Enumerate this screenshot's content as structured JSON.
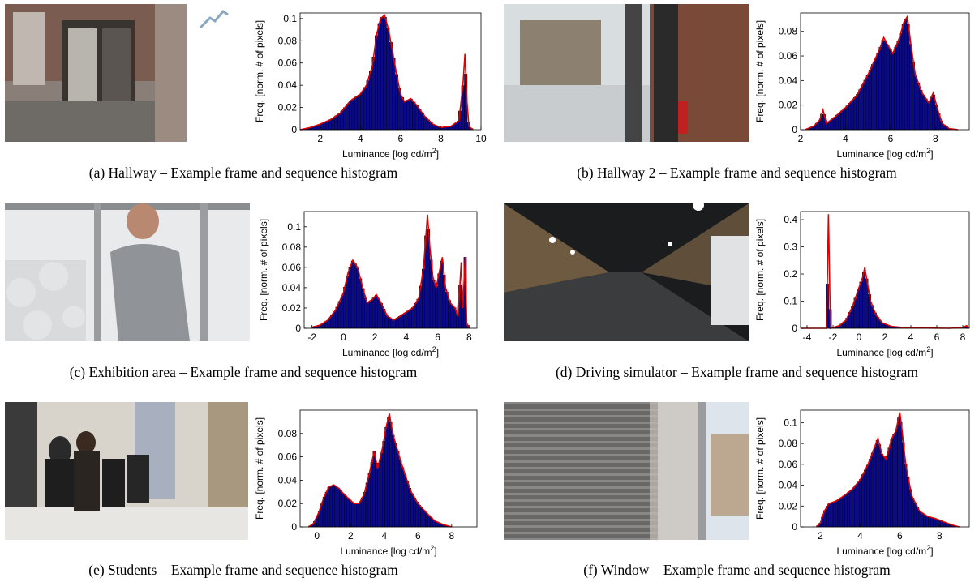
{
  "figure": {
    "panels": [
      {
        "id": "a",
        "caption": "(a)  Hallway – Example frame and sequence histogram",
        "photo_icon": "hallway-photo",
        "chart_data": {
          "type": "bar",
          "xlabel": "Luminance [log cd/m2]",
          "ylabel": "Freq. [norm. # of pixels]",
          "xlim": [
            1,
            10
          ],
          "ylim": [
            0,
            0.105
          ],
          "xticks": [
            2,
            4,
            6,
            8,
            10
          ],
          "yticks": [
            0,
            0.02,
            0.04,
            0.06,
            0.08,
            0.1
          ],
          "curve": [
            [
              1,
              0
            ],
            [
              1.5,
              0.002
            ],
            [
              2,
              0.005
            ],
            [
              2.5,
              0.009
            ],
            [
              3,
              0.015
            ],
            [
              3.5,
              0.026
            ],
            [
              4,
              0.032
            ],
            [
              4.3,
              0.04
            ],
            [
              4.6,
              0.058
            ],
            [
              4.8,
              0.085
            ],
            [
              5,
              0.1
            ],
            [
              5.2,
              0.103
            ],
            [
              5.4,
              0.09
            ],
            [
              5.6,
              0.07
            ],
            [
              5.8,
              0.05
            ],
            [
              6,
              0.032
            ],
            [
              6.2,
              0.025
            ],
            [
              6.5,
              0.028
            ],
            [
              6.8,
              0.022
            ],
            [
              7.2,
              0.012
            ],
            [
              7.6,
              0.005
            ],
            [
              8,
              0.002
            ],
            [
              8.5,
              0.003
            ],
            [
              8.9,
              0.008
            ],
            [
              9.1,
              0.04
            ],
            [
              9.2,
              0.068
            ],
            [
              9.3,
              0.025
            ],
            [
              9.4,
              0.003
            ],
            [
              9.6,
              0
            ]
          ]
        }
      },
      {
        "id": "b",
        "caption": "(b)  Hallway 2 – Example frame and sequence histogram",
        "photo_icon": "hallway-2-photo",
        "chart_data": {
          "type": "bar",
          "xlabel": "Luminance [log cd/m2]",
          "ylabel": "Freq. [norm. # of pixels]",
          "xlim": [
            2,
            9.5
          ],
          "ylim": [
            0,
            0.095
          ],
          "xticks": [
            2,
            4,
            6,
            8
          ],
          "yticks": [
            0,
            0.02,
            0.04,
            0.06,
            0.08
          ],
          "curve": [
            [
              2.2,
              0
            ],
            [
              2.6,
              0.003
            ],
            [
              2.85,
              0.008
            ],
            [
              3,
              0.016
            ],
            [
              3.15,
              0.005
            ],
            [
              3.5,
              0.01
            ],
            [
              4,
              0.018
            ],
            [
              4.5,
              0.028
            ],
            [
              5,
              0.045
            ],
            [
              5.5,
              0.065
            ],
            [
              5.7,
              0.075
            ],
            [
              5.9,
              0.068
            ],
            [
              6.1,
              0.062
            ],
            [
              6.4,
              0.075
            ],
            [
              6.6,
              0.088
            ],
            [
              6.75,
              0.092
            ],
            [
              6.9,
              0.07
            ],
            [
              7.1,
              0.045
            ],
            [
              7.4,
              0.03
            ],
            [
              7.7,
              0.022
            ],
            [
              7.9,
              0.03
            ],
            [
              8.1,
              0.016
            ],
            [
              8.3,
              0.005
            ],
            [
              8.6,
              0.001
            ],
            [
              9,
              0
            ]
          ]
        }
      },
      {
        "id": "c",
        "caption": "(c)  Exhibition area – Example frame and sequence histogram",
        "photo_icon": "exhibition-area-photo",
        "chart_data": {
          "type": "bar",
          "xlabel": "Luminance [log cd/m2]",
          "ylabel": "Freq. [norm. # of pixels]",
          "xlim": [
            -2.5,
            8.5
          ],
          "ylim": [
            0,
            0.115
          ],
          "xticks": [
            -2,
            0,
            2,
            4,
            6,
            8
          ],
          "yticks": [
            0,
            0.02,
            0.04,
            0.06,
            0.08,
            0.1
          ],
          "curve": [
            [
              -2,
              0.001
            ],
            [
              -1.5,
              0.003
            ],
            [
              -1,
              0.008
            ],
            [
              -0.5,
              0.018
            ],
            [
              0,
              0.035
            ],
            [
              0.3,
              0.055
            ],
            [
              0.6,
              0.067
            ],
            [
              0.9,
              0.06
            ],
            [
              1.2,
              0.042
            ],
            [
              1.5,
              0.025
            ],
            [
              1.8,
              0.028
            ],
            [
              2.1,
              0.033
            ],
            [
              2.4,
              0.025
            ],
            [
              2.8,
              0.012
            ],
            [
              3.2,
              0.008
            ],
            [
              3.6,
              0.012
            ],
            [
              4,
              0.016
            ],
            [
              4.4,
              0.02
            ],
            [
              4.8,
              0.03
            ],
            [
              5.1,
              0.06
            ],
            [
              5.35,
              0.112
            ],
            [
              5.5,
              0.08
            ],
            [
              5.7,
              0.05
            ],
            [
              5.9,
              0.04
            ],
            [
              6.1,
              0.055
            ],
            [
              6.3,
              0.07
            ],
            [
              6.5,
              0.04
            ],
            [
              6.8,
              0.025
            ],
            [
              7.1,
              0.02
            ],
            [
              7.3,
              0.012
            ],
            [
              7.5,
              0.065
            ],
            [
              7.6,
              0.02
            ],
            [
              7.75,
              0.07
            ],
            [
              7.85,
              0.005
            ],
            [
              8,
              0
            ]
          ]
        }
      },
      {
        "id": "d",
        "caption": "(d)  Driving simulator – Example frame and sequence histogram",
        "photo_icon": "driving-simulator-photo",
        "chart_data": {
          "type": "bar",
          "xlabel": "Luminance [log cd/m2]",
          "ylabel": "Freq. [norm. # of pixels]",
          "xlim": [
            -4.5,
            8.5
          ],
          "ylim": [
            0,
            0.43
          ],
          "xticks": [
            -4,
            -2,
            0,
            2,
            4,
            6,
            8
          ],
          "yticks": [
            0,
            0.1,
            0.2,
            0.3,
            0.4
          ],
          "curve": [
            [
              -4.5,
              0
            ],
            [
              -2.5,
              0
            ],
            [
              -2.35,
              0.42
            ],
            [
              -2.2,
              0
            ],
            [
              -2,
              0.003
            ],
            [
              -1.5,
              0.01
            ],
            [
              -1,
              0.03
            ],
            [
              -0.5,
              0.08
            ],
            [
              0,
              0.15
            ],
            [
              0.3,
              0.19
            ],
            [
              0.45,
              0.225
            ],
            [
              0.6,
              0.18
            ],
            [
              0.9,
              0.1
            ],
            [
              1.3,
              0.05
            ],
            [
              1.8,
              0.02
            ],
            [
              2.5,
              0.007
            ],
            [
              3.5,
              0.002
            ],
            [
              5,
              0.001
            ],
            [
              7,
              0
            ],
            [
              8,
              0.003
            ],
            [
              8.3,
              0.01
            ],
            [
              8.5,
              0
            ]
          ]
        }
      },
      {
        "id": "e",
        "caption": "(e)  Students – Example frame and sequence histogram",
        "photo_icon": "students-photo",
        "chart_data": {
          "type": "bar",
          "xlabel": "Luminance [log cd/m2]",
          "ylabel": "Freq. [norm. # of pixels]",
          "xlim": [
            -1,
            9.5
          ],
          "ylim": [
            0,
            0.1
          ],
          "xticks": [
            0,
            2,
            4,
            6,
            8
          ],
          "yticks": [
            0,
            0.02,
            0.04,
            0.06,
            0.08
          ],
          "curve": [
            [
              -0.5,
              0
            ],
            [
              -0.2,
              0.003
            ],
            [
              0.1,
              0.012
            ],
            [
              0.4,
              0.025
            ],
            [
              0.7,
              0.034
            ],
            [
              1,
              0.036
            ],
            [
              1.3,
              0.033
            ],
            [
              1.6,
              0.028
            ],
            [
              1.9,
              0.024
            ],
            [
              2.2,
              0.02
            ],
            [
              2.5,
              0.02
            ],
            [
              2.8,
              0.028
            ],
            [
              3.1,
              0.045
            ],
            [
              3.4,
              0.065
            ],
            [
              3.6,
              0.05
            ],
            [
              3.9,
              0.068
            ],
            [
              4.1,
              0.085
            ],
            [
              4.3,
              0.097
            ],
            [
              4.5,
              0.08
            ],
            [
              4.8,
              0.065
            ],
            [
              5,
              0.055
            ],
            [
              5.3,
              0.042
            ],
            [
              5.6,
              0.03
            ],
            [
              6,
              0.02
            ],
            [
              6.5,
              0.012
            ],
            [
              7,
              0.005
            ],
            [
              7.5,
              0.002
            ],
            [
              8,
              0
            ]
          ]
        }
      },
      {
        "id": "f",
        "caption": "(f)  Window – Example frame and sequence histogram",
        "photo_icon": "window-photo",
        "chart_data": {
          "type": "bar",
          "xlabel": "Luminance [log cd/m2]",
          "ylabel": "Freq. [norm. # of pixels]",
          "xlim": [
            1,
            9.5
          ],
          "ylim": [
            0,
            0.112
          ],
          "xticks": [
            2,
            4,
            6,
            8
          ],
          "yticks": [
            0,
            0.02,
            0.04,
            0.06,
            0.08,
            0.1
          ],
          "curve": [
            [
              1.8,
              0
            ],
            [
              2,
              0.004
            ],
            [
              2.2,
              0.015
            ],
            [
              2.4,
              0.022
            ],
            [
              2.8,
              0.025
            ],
            [
              3.2,
              0.03
            ],
            [
              3.6,
              0.036
            ],
            [
              4,
              0.045
            ],
            [
              4.4,
              0.06
            ],
            [
              4.7,
              0.075
            ],
            [
              4.9,
              0.085
            ],
            [
              5.1,
              0.07
            ],
            [
              5.3,
              0.065
            ],
            [
              5.6,
              0.085
            ],
            [
              5.8,
              0.092
            ],
            [
              6,
              0.11
            ],
            [
              6.1,
              0.095
            ],
            [
              6.3,
              0.06
            ],
            [
              6.6,
              0.03
            ],
            [
              7,
              0.015
            ],
            [
              7.4,
              0.01
            ],
            [
              7.8,
              0.008
            ],
            [
              8.2,
              0.005
            ],
            [
              8.6,
              0.002
            ],
            [
              9,
              0
            ]
          ]
        }
      }
    ]
  }
}
